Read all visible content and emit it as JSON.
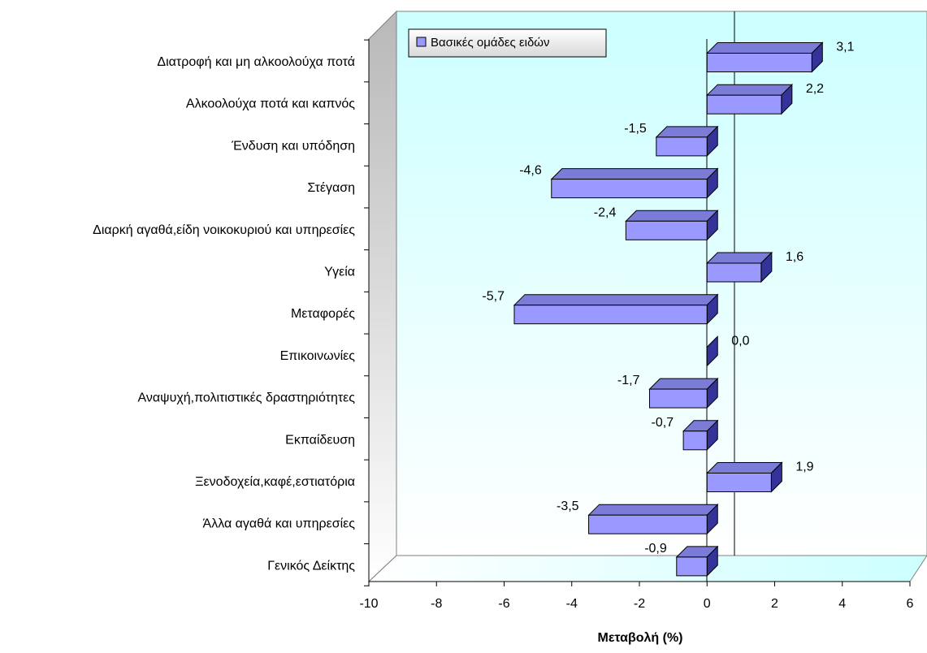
{
  "chart_data": {
    "type": "bar",
    "orientation": "horizontal",
    "style": "3d",
    "categories": [
      "Διατροφή και μη αλκοολούχα ποτά",
      "Αλκοολούχα ποτά και καπνός",
      "Ένδυση και υπόδηση",
      "Στέγαση",
      "Διαρκή αγαθά,είδη νοικοκυριού και υπηρεσίες",
      "Υγεία",
      "Μεταφορές",
      "Επικοινωνίες",
      "Αναψυχή,πολιτιστικές δραστηριότητες",
      "Εκπαίδευση",
      "Ξενοδοχεία,καφέ,εστιατόρια",
      "Άλλα αγαθά και υπηρεσίες",
      "Γενικός Δείκτης"
    ],
    "series": [
      {
        "name": "Βασικές ομάδες ειδών",
        "values": [
          3.1,
          2.2,
          -1.5,
          -4.6,
          -2.4,
          1.6,
          -5.7,
          0.0,
          -1.7,
          -0.7,
          1.9,
          -3.5,
          -0.9
        ],
        "labels": [
          "3,1",
          "2,2",
          "-1,5",
          "-4,6",
          "-2,4",
          "1,6",
          "-5,7",
          "0,0",
          "-1,7",
          "-0,7",
          "1,9",
          "-3,5",
          "-0,9"
        ],
        "color": "#9999ff"
      }
    ],
    "xlim": [
      -10,
      6
    ],
    "xticks": [
      "-10",
      "-8",
      "-6",
      "-4",
      "-2",
      "0",
      "2",
      "4",
      "6"
    ],
    "xlabel": "Μεταβολή (%)",
    "ylabel": "",
    "title": "",
    "legend": "top-left",
    "grid": false,
    "colors": {
      "bar_front": "#9999ff",
      "bar_top": "#7b7bd8",
      "bar_side": "#333399",
      "wall": "#ccffff",
      "side_wall": "#c0c0c0",
      "floor": "#ccffff"
    }
  }
}
